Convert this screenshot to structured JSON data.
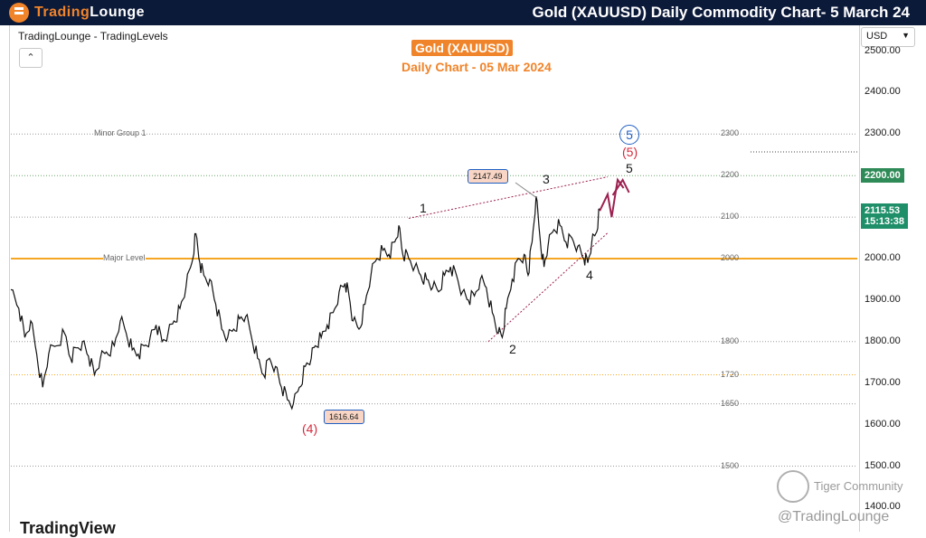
{
  "header": {
    "logo_word1": "Trading",
    "logo_word2": "Lounge",
    "title": "Gold (XAUUSD) Daily Commodity Chart- 5 March 24"
  },
  "chart_header": {
    "source": "TradingLounge - TradingLevels",
    "instrument": "Gold (XAUUSD)",
    "subtitle": "Daily Chart - 05 Mar 2024",
    "currency": "USD"
  },
  "branding": {
    "platform": "TradingView",
    "watermark_community": "Tiger Community",
    "watermark_handle": "@TradingLounge"
  },
  "colors": {
    "topbar": "#0c1a3a",
    "accent_orange": "#f0842a",
    "major_level": "#f5a623",
    "wave_red": "#d62a3c",
    "wave_blue": "#1e5fc2",
    "projection": "#9c2050",
    "tag_green": "#2e8b57"
  },
  "chart_data": {
    "type": "line",
    "title": "Gold (XAUUSD)",
    "subtitle": "Daily Chart - 05 Mar 2024",
    "ylim": [
      1386,
      2520
    ],
    "y_ticks": [
      2500,
      2400,
      2300,
      2200,
      2100,
      2000,
      1900,
      1800,
      1700,
      1600,
      1500,
      1400
    ],
    "y_tick_labels": [
      "2500.00",
      "2400.00",
      "2300.00",
      "2200.00",
      "2100.00",
      "2000.00",
      "1900.00",
      "1800.00",
      "1700.00",
      "1600.00",
      "1500.00",
      "1400.00"
    ],
    "price_path": [
      [
        0,
        1925
      ],
      [
        4,
        1880
      ],
      [
        7,
        1810
      ],
      [
        10,
        1850
      ],
      [
        13,
        1770
      ],
      [
        16,
        1690
      ],
      [
        19,
        1770
      ],
      [
        23,
        1790
      ],
      [
        27,
        1820
      ],
      [
        30,
        1760
      ],
      [
        33,
        1785
      ],
      [
        36,
        1800
      ],
      [
        39,
        1765
      ],
      [
        42,
        1720
      ],
      [
        45,
        1760
      ],
      [
        48,
        1775
      ],
      [
        52,
        1790
      ],
      [
        55,
        1850
      ],
      [
        58,
        1820
      ],
      [
        61,
        1780
      ],
      [
        64,
        1770
      ],
      [
        67,
        1790
      ],
      [
        70,
        1810
      ],
      [
        73,
        1840
      ],
      [
        76,
        1800
      ],
      [
        79,
        1820
      ],
      [
        82,
        1850
      ],
      [
        85,
        1880
      ],
      [
        88,
        1930
      ],
      [
        91,
        1990
      ],
      [
        93,
        2060
      ],
      [
        95,
        1990
      ],
      [
        97,
        1960
      ],
      [
        100,
        1950
      ],
      [
        103,
        1890
      ],
      [
        106,
        1830
      ],
      [
        109,
        1810
      ],
      [
        112,
        1830
      ],
      [
        115,
        1855
      ],
      [
        118,
        1860
      ],
      [
        121,
        1810
      ],
      [
        124,
        1760
      ],
      [
        127,
        1720
      ],
      [
        130,
        1760
      ],
      [
        133,
        1740
      ],
      [
        136,
        1690
      ],
      [
        139,
        1660
      ],
      [
        142,
        1650
      ],
      [
        145,
        1690
      ],
      [
        148,
        1740
      ],
      [
        151,
        1760
      ],
      [
        153,
        1790
      ],
      [
        156,
        1810
      ],
      [
        159,
        1840
      ],
      [
        162,
        1870
      ],
      [
        165,
        1920
      ],
      [
        168,
        1940
      ],
      [
        170,
        1910
      ],
      [
        172,
        1850
      ],
      [
        175,
        1830
      ],
      [
        178,
        1890
      ],
      [
        181,
        1960
      ],
      [
        184,
        2000
      ],
      [
        187,
        2020
      ],
      [
        190,
        2010
      ],
      [
        193,
        2040
      ],
      [
        195,
        2080
      ],
      [
        197,
        2010
      ],
      [
        200,
        2000
      ],
      [
        203,
        1980
      ],
      [
        206,
        1960
      ],
      [
        209,
        1950
      ],
      [
        212,
        1930
      ],
      [
        215,
        1920
      ],
      [
        218,
        1960
      ],
      [
        221,
        1980
      ],
      [
        224,
        1960
      ],
      [
        227,
        1920
      ],
      [
        230,
        1900
      ],
      [
        233,
        1910
      ],
      [
        236,
        1950
      ],
      [
        239,
        1930
      ],
      [
        242,
        1870
      ],
      [
        245,
        1820
      ],
      [
        247,
        1810
      ],
      [
        249,
        1880
      ],
      [
        252,
        1950
      ],
      [
        255,
        2000
      ],
      [
        258,
        2010
      ],
      [
        260,
        1960
      ],
      [
        262,
        2040
      ],
      [
        264,
        2150
      ],
      [
        266,
        2050
      ],
      [
        268,
        1980
      ],
      [
        270,
        2030
      ],
      [
        273,
        2070
      ],
      [
        276,
        2080
      ],
      [
        279,
        2040
      ],
      [
        282,
        2050
      ],
      [
        285,
        2030
      ],
      [
        288,
        2000
      ],
      [
        290,
        1990
      ],
      [
        292,
        2040
      ],
      [
        294,
        2060
      ],
      [
        296,
        2120
      ]
    ],
    "levels": [
      {
        "price": 2300,
        "label": "2300",
        "name": "Minor Group 1",
        "style": "dotted"
      },
      {
        "price": 2200,
        "label": "2200",
        "name": "",
        "style": "dotted-green"
      },
      {
        "price": 2100,
        "label": "2100",
        "name": "",
        "style": "dotted"
      },
      {
        "price": 2000,
        "label": "2000",
        "name": "Major Level",
        "style": "solid-orange"
      },
      {
        "price": 1800,
        "label": "1800",
        "name": "",
        "style": "dotted"
      },
      {
        "price": 1720,
        "label": "1720",
        "name": "",
        "style": "dotted-orange"
      },
      {
        "price": 1650,
        "label": "1650",
        "name": "",
        "style": "dotted"
      },
      {
        "price": 1500,
        "label": "1500",
        "name": "",
        "style": "dotted"
      }
    ],
    "price_tags": [
      {
        "label": "2200.00",
        "price": 2200
      },
      {
        "label": "2115.53",
        "countdown": "15:13:38",
        "price": 2115.53
      }
    ],
    "price_boxes": [
      {
        "label": "2147.49",
        "price": 2147.49,
        "wave": "3"
      },
      {
        "label": "1616.64",
        "price": 1616.64,
        "wave": "(4)"
      }
    ],
    "wave_labels": [
      {
        "text": "1",
        "price": 2083,
        "style": "black"
      },
      {
        "text": "2",
        "price": 1795,
        "style": "black"
      },
      {
        "text": "3",
        "price": 2150,
        "style": "black"
      },
      {
        "text": "4",
        "price": 1970,
        "style": "black"
      },
      {
        "text": "5",
        "price": 2190,
        "style": "black"
      },
      {
        "text": "(4)",
        "price": 1615,
        "style": "red"
      },
      {
        "text": "(5)",
        "price": 2240,
        "style": "red"
      },
      {
        "text": "5",
        "price": 2295,
        "style": "blue-circle"
      }
    ],
    "wedge_lines": [
      {
        "from": [
          200,
          2097
        ],
        "to": [
          300,
          2197
        ]
      },
      {
        "from": [
          240,
          1800
        ],
        "to": [
          300,
          2062
        ]
      }
    ],
    "projection_path": [
      [
        296,
        2115
      ],
      [
        300,
        2155
      ],
      [
        302,
        2100
      ],
      [
        305,
        2190
      ],
      [
        308,
        2170
      ]
    ]
  }
}
